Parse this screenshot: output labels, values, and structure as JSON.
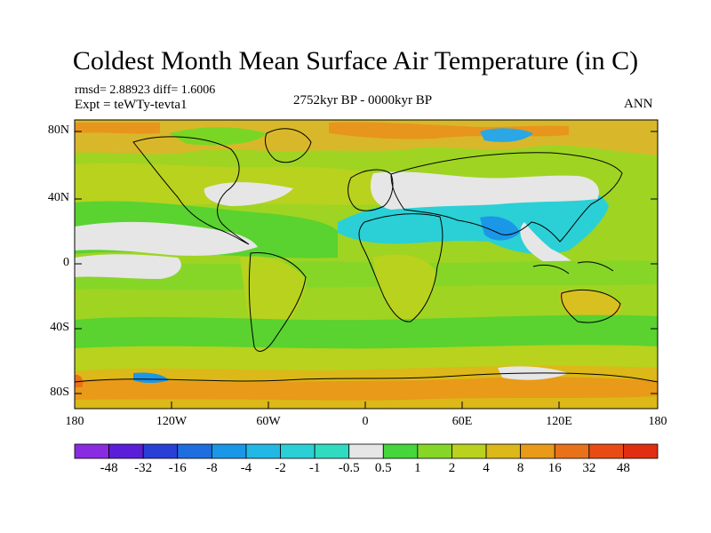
{
  "header": {
    "title": "Coldest Month Mean Surface Air Temperature (in C)",
    "stats": "rmsd= 2.88923  diff= 1.6006",
    "experiment": "Expt = teWTy-tevta1",
    "period": "2752kyr BP - 0000kyr BP",
    "season": "ANN"
  },
  "axes": {
    "y_ticks": [
      "80N",
      "40N",
      "0",
      "40S",
      "80S"
    ],
    "x_ticks": [
      "180",
      "120W",
      "60W",
      "0",
      "60E",
      "120E",
      "180"
    ]
  },
  "colorbar": {
    "labels": [
      "-48",
      "-32",
      "-16",
      "-8",
      "-4",
      "-2",
      "-1",
      "-0.5",
      "0.5",
      "1",
      "2",
      "4",
      "8",
      "16",
      "32",
      "48"
    ],
    "colors": [
      "#8a2be2",
      "#5a1ed8",
      "#2a3fd6",
      "#1f6ee0",
      "#1b97e8",
      "#22b8e6",
      "#2ad0d6",
      "#30dcc0",
      "#e6e6e6",
      "#44d63a",
      "#86d628",
      "#b8d21e",
      "#dcb818",
      "#e89a18",
      "#e8721a",
      "#e84c14",
      "#e22e10"
    ]
  }
}
